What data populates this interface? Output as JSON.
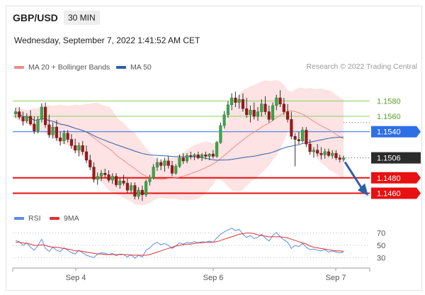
{
  "header": {
    "symbol": "GBP/USD",
    "timeframe": "30 MIN",
    "datetime": "Wednesday, September 7, 2022 1:41:52 AM CET"
  },
  "legend": {
    "ma20": {
      "label": "MA 20 + Bollinger Bands",
      "color": "#f08c8c"
    },
    "ma50": {
      "label": "MA 50",
      "color": "#2f5fa8"
    }
  },
  "credit": "Research © 2022 Trading Central",
  "rsi_legend": {
    "rsi": {
      "label": "RSI",
      "color": "#5b8ee6"
    },
    "ma9": {
      "label": "9MA",
      "color": "#e23030"
    }
  },
  "chart_data": [
    {
      "type": "candlestick",
      "title": "GBP/USD 30 MIN",
      "ylim": [
        1.1442,
        1.1608
      ],
      "x_tick_labels": [
        "Sep 4",
        "Sep 6",
        "Sep 7"
      ],
      "levels": [
        {
          "value": 1.158,
          "label": "1.1580",
          "style": "thin",
          "color": "#8ccf5a",
          "text_color": "#5aa02c"
        },
        {
          "value": 1.156,
          "label": "1.1560",
          "style": "thin",
          "color": "#8ccf5a",
          "text_color": "#5aa02c"
        },
        {
          "value": 1.154,
          "label": "1.1540",
          "style": "box",
          "color": "#2f6fe6",
          "text_color": "#ffffff"
        },
        {
          "value": 1.1506,
          "label": "1.1506",
          "style": "box",
          "color": "#2b2b2b",
          "text_color": "#ffffff"
        },
        {
          "value": 1.148,
          "label": "1.1480",
          "style": "box",
          "color": "#e81010",
          "text_color": "#ffffff"
        },
        {
          "value": 1.146,
          "label": "1.1460",
          "style": "box",
          "color": "#e81010",
          "text_color": "#ffffff"
        }
      ],
      "forecast_arrow": {
        "from": 1.1506,
        "to": 1.1462
      },
      "ohlc": [
        [
          1.1563,
          1.1571,
          1.1558,
          1.1566
        ],
        [
          1.1566,
          1.1572,
          1.1556,
          1.1559
        ],
        [
          1.1559,
          1.1566,
          1.1548,
          1.1554
        ],
        [
          1.1554,
          1.1564,
          1.1551,
          1.156
        ],
        [
          1.156,
          1.1568,
          1.1548,
          1.155
        ],
        [
          1.155,
          1.156,
          1.1537,
          1.1541
        ],
        [
          1.1541,
          1.156,
          1.1538,
          1.1556
        ],
        [
          1.1556,
          1.1577,
          1.1552,
          1.1572
        ],
        [
          1.1572,
          1.1578,
          1.1545,
          1.1549
        ],
        [
          1.1549,
          1.1562,
          1.1532,
          1.1536
        ],
        [
          1.1536,
          1.1552,
          1.1531,
          1.1546
        ],
        [
          1.1546,
          1.1555,
          1.1528,
          1.1532
        ],
        [
          1.1532,
          1.154,
          1.1522,
          1.1528
        ],
        [
          1.1528,
          1.1542,
          1.1524,
          1.1538
        ],
        [
          1.1538,
          1.1542,
          1.1526,
          1.153
        ],
        [
          1.153,
          1.1537,
          1.1518,
          1.1522
        ],
        [
          1.1522,
          1.1531,
          1.1512,
          1.1516
        ],
        [
          1.1516,
          1.1526,
          1.1508,
          1.1522
        ],
        [
          1.1522,
          1.1528,
          1.151,
          1.1514
        ],
        [
          1.1514,
          1.1522,
          1.1499,
          1.1503
        ],
        [
          1.1503,
          1.151,
          1.149,
          1.1494
        ],
        [
          1.1494,
          1.15,
          1.1474,
          1.1478
        ],
        [
          1.1478,
          1.1487,
          1.1471,
          1.1482
        ],
        [
          1.1482,
          1.149,
          1.1476,
          1.1486
        ],
        [
          1.1486,
          1.1492,
          1.148,
          1.1484
        ],
        [
          1.1484,
          1.149,
          1.1474,
          1.1477
        ],
        [
          1.1477,
          1.1486,
          1.1472,
          1.1482
        ],
        [
          1.1482,
          1.1486,
          1.1468,
          1.1471
        ],
        [
          1.1471,
          1.148,
          1.1466,
          1.1476
        ],
        [
          1.1476,
          1.1484,
          1.147,
          1.1473
        ],
        [
          1.1473,
          1.1479,
          1.146,
          1.1464
        ],
        [
          1.1464,
          1.1474,
          1.146,
          1.147
        ],
        [
          1.147,
          1.1474,
          1.1452,
          1.1456
        ],
        [
          1.1456,
          1.1468,
          1.1452,
          1.1464
        ],
        [
          1.1464,
          1.147,
          1.145,
          1.1458
        ],
        [
          1.1458,
          1.1478,
          1.1455,
          1.1475
        ],
        [
          1.1475,
          1.1484,
          1.147,
          1.148
        ],
        [
          1.148,
          1.1498,
          1.1478,
          1.1494
        ],
        [
          1.1494,
          1.1506,
          1.1489,
          1.15
        ],
        [
          1.15,
          1.1504,
          1.149,
          1.1496
        ],
        [
          1.1496,
          1.1506,
          1.1488,
          1.1502
        ],
        [
          1.1502,
          1.1508,
          1.1492,
          1.1496
        ],
        [
          1.1496,
          1.1502,
          1.1482,
          1.1486
        ],
        [
          1.1486,
          1.1498,
          1.1484,
          1.1495
        ],
        [
          1.1495,
          1.151,
          1.1493,
          1.1506
        ],
        [
          1.1506,
          1.1512,
          1.1498,
          1.1502
        ],
        [
          1.1502,
          1.1512,
          1.1499,
          1.1509
        ],
        [
          1.1509,
          1.1514,
          1.1504,
          1.1508
        ],
        [
          1.1508,
          1.1512,
          1.1503,
          1.151
        ],
        [
          1.151,
          1.1514,
          1.1504,
          1.1506
        ],
        [
          1.1506,
          1.1512,
          1.1502,
          1.151
        ],
        [
          1.151,
          1.1514,
          1.1504,
          1.1508
        ],
        [
          1.1508,
          1.1512,
          1.1503,
          1.1511
        ],
        [
          1.1511,
          1.1516,
          1.1505,
          1.1508
        ],
        [
          1.1508,
          1.1528,
          1.1506,
          1.1526
        ],
        [
          1.1526,
          1.1552,
          1.1524,
          1.1548
        ],
        [
          1.1548,
          1.1567,
          1.1544,
          1.1562
        ],
        [
          1.1562,
          1.158,
          1.1558,
          1.1575
        ],
        [
          1.1575,
          1.159,
          1.1568,
          1.1584
        ],
        [
          1.1584,
          1.1592,
          1.1572,
          1.1578
        ],
        [
          1.1578,
          1.1588,
          1.157,
          1.1582
        ],
        [
          1.1582,
          1.159,
          1.1566,
          1.157
        ],
        [
          1.157,
          1.1584,
          1.1558,
          1.1562
        ],
        [
          1.1562,
          1.1574,
          1.1552,
          1.1568
        ],
        [
          1.1568,
          1.1578,
          1.1556,
          1.156
        ],
        [
          1.156,
          1.1572,
          1.1554,
          1.1566
        ],
        [
          1.1566,
          1.1582,
          1.156,
          1.1576
        ],
        [
          1.1576,
          1.1586,
          1.1562,
          1.1566
        ],
        [
          1.1566,
          1.1574,
          1.1552,
          1.1556
        ],
        [
          1.1556,
          1.1578,
          1.1554,
          1.1574
        ],
        [
          1.1574,
          1.1588,
          1.1568,
          1.1584
        ],
        [
          1.1584,
          1.1594,
          1.1572,
          1.1576
        ],
        [
          1.1576,
          1.1584,
          1.1562,
          1.1566
        ],
        [
          1.1566,
          1.1576,
          1.1552,
          1.1556
        ],
        [
          1.1556,
          1.1566,
          1.153,
          1.1534
        ],
        [
          1.1534,
          1.1538,
          1.1495,
          1.153
        ],
        [
          1.153,
          1.154,
          1.1524,
          1.1528
        ],
        [
          1.1528,
          1.1546,
          1.1526,
          1.1542
        ],
        [
          1.1542,
          1.1546,
          1.152,
          1.1524
        ],
        [
          1.1524,
          1.153,
          1.151,
          1.1514
        ],
        [
          1.1514,
          1.152,
          1.1506,
          1.1516
        ],
        [
          1.1516,
          1.1524,
          1.1508,
          1.1512
        ],
        [
          1.1512,
          1.152,
          1.1504,
          1.151
        ],
        [
          1.151,
          1.1518,
          1.1505,
          1.1514
        ],
        [
          1.1514,
          1.1518,
          1.1507,
          1.1509
        ],
        [
          1.1509,
          1.1516,
          1.1505,
          1.1512
        ],
        [
          1.1512,
          1.1516,
          1.1503,
          1.1506
        ],
        [
          1.1506,
          1.151,
          1.15,
          1.1504
        ],
        [
          1.1504,
          1.1509,
          1.1501,
          1.1506
        ]
      ]
    },
    {
      "type": "line",
      "title": "RSI",
      "ylim": [
        20,
        80
      ],
      "y_tick_labels": [
        "70",
        "50",
        "30"
      ],
      "series": [
        {
          "name": "RSI",
          "color": "#5b8ee6",
          "values": [
            58,
            56,
            50,
            54,
            47,
            42,
            50,
            60,
            45,
            40,
            47,
            42,
            40,
            46,
            42,
            38,
            36,
            42,
            38,
            34,
            32,
            30,
            36,
            38,
            37,
            35,
            37,
            33,
            36,
            35,
            31,
            35,
            29,
            34,
            31,
            42,
            46,
            52,
            55,
            51,
            53,
            50,
            45,
            49,
            54,
            52,
            55,
            54,
            56,
            54,
            56,
            55,
            57,
            55,
            62,
            68,
            72,
            75,
            78,
            74,
            76,
            68,
            63,
            66,
            61,
            63,
            68,
            62,
            57,
            66,
            71,
            64,
            59,
            55,
            45,
            50,
            48,
            53,
            47,
            43,
            44,
            42,
            41,
            43,
            39,
            41,
            39,
            38,
            39
          ]
        },
        {
          "name": "9MA",
          "color": "#e23030",
          "values": [
            55,
            55,
            54,
            53,
            52,
            50,
            50,
            51,
            50,
            48,
            47,
            47,
            46,
            45,
            44,
            43,
            41,
            41,
            40,
            39,
            38,
            37,
            36,
            36,
            35,
            35,
            35,
            35,
            35,
            35,
            35,
            34,
            34,
            34,
            34,
            34,
            35,
            37,
            39,
            41,
            43,
            45,
            47,
            49,
            50,
            51,
            52,
            52,
            53,
            54,
            54,
            55,
            55,
            55,
            56,
            58,
            60,
            62,
            64,
            66,
            68,
            69,
            70,
            70,
            69,
            67,
            66,
            65,
            64,
            64,
            64,
            64,
            63,
            62,
            60,
            58,
            56,
            54,
            52,
            49,
            47,
            46,
            45,
            44,
            43,
            42,
            41,
            41,
            40
          ]
        }
      ]
    }
  ]
}
